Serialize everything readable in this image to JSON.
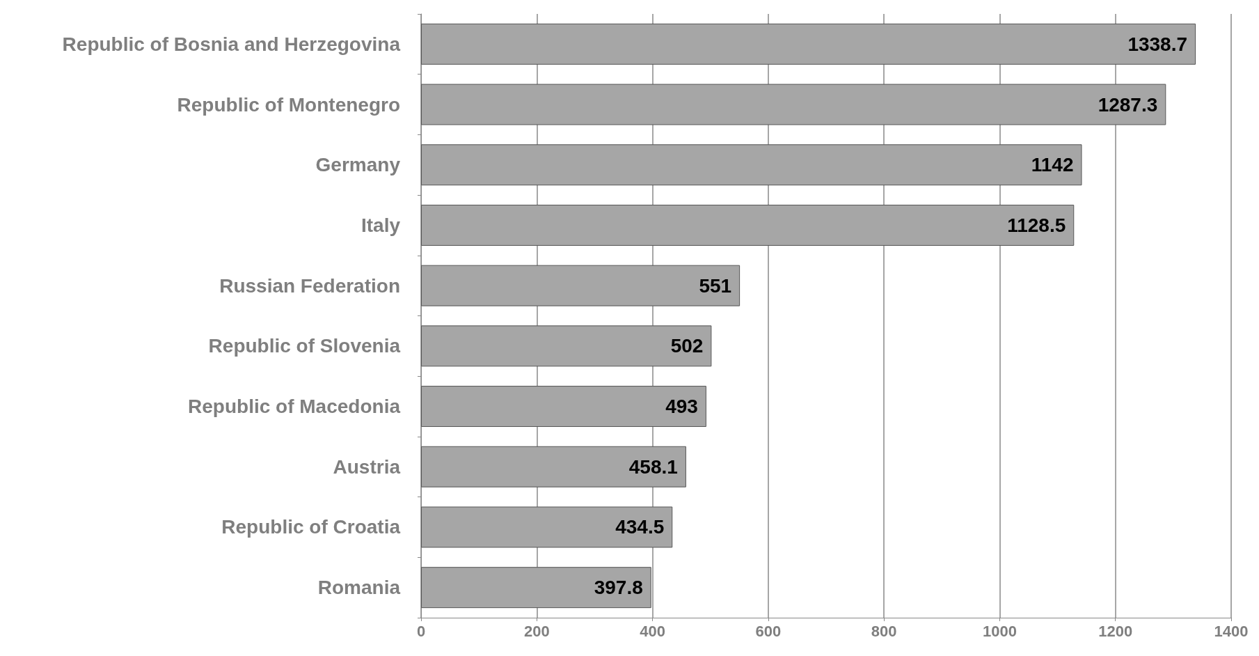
{
  "chart_data": {
    "type": "bar",
    "orientation": "horizontal",
    "categories": [
      "Republic of Bosnia and Herzegovina",
      "Republic of Montenegro",
      "Germany",
      "Italy",
      "Russian Federation",
      "Republic of Slovenia",
      "Republic of Macedonia",
      "Austria",
      "Republic of Croatia",
      "Romania"
    ],
    "values": [
      1338.7,
      1287.3,
      1142,
      1128.5,
      551,
      502,
      493,
      458.1,
      434.5,
      397.8
    ],
    "color": "#a6a6a6",
    "xlim": [
      0,
      1400
    ],
    "xticks": [
      0,
      200,
      400,
      600,
      800,
      1000,
      1200,
      1400
    ],
    "grid": "x",
    "data_labels": true
  }
}
